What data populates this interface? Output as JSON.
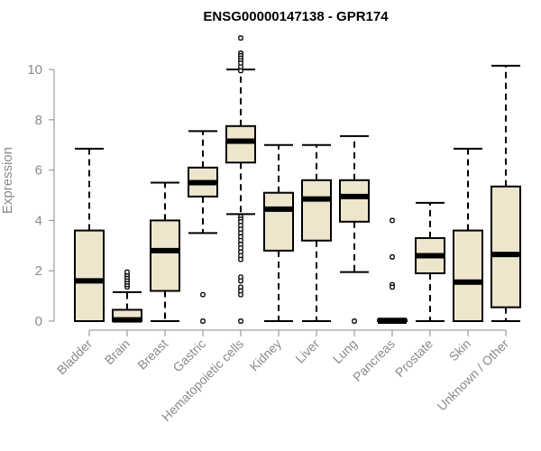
{
  "chart_data": {
    "type": "boxplot",
    "title": "ENSG00000147138 - GPR174",
    "xlabel": "",
    "ylabel": "Expression",
    "ylim": [
      0,
      10.4
    ],
    "yticks": [
      "0",
      "2",
      "4",
      "6",
      "8",
      "10"
    ],
    "box_color": "#ede6cd",
    "categories": [
      "Bladder",
      "Brain",
      "Breast",
      "Gastric",
      "Hematopoietic cells",
      "Kidney",
      "Liver",
      "Lung",
      "Pancreas",
      "Prostate",
      "Skin",
      "Unknown / Other"
    ],
    "series": [
      {
        "name": "Bladder",
        "min": 0,
        "q1": 0,
        "median": 1.6,
        "q3": 3.6,
        "max": 6.85,
        "outliers": []
      },
      {
        "name": "Brain",
        "min": 0,
        "q1": 0,
        "median": 0.05,
        "q3": 0.45,
        "max": 1.15,
        "outliers": [
          1.35,
          1.45,
          1.55,
          1.65,
          1.75,
          1.85,
          1.95
        ]
      },
      {
        "name": "Breast",
        "min": 0,
        "q1": 1.2,
        "median": 2.8,
        "q3": 4.0,
        "max": 5.5,
        "outliers": []
      },
      {
        "name": "Gastric",
        "min": 3.5,
        "q1": 4.95,
        "median": 5.5,
        "q3": 6.1,
        "max": 7.55,
        "outliers": [
          1.05,
          0.0
        ]
      },
      {
        "name": "Hematopoietic cells",
        "min": 4.25,
        "q1": 6.3,
        "median": 7.15,
        "q3": 7.75,
        "max": 10.0,
        "outliers": [
          11.25,
          10.65,
          10.55,
          10.45,
          10.35,
          10.25,
          10.1,
          9.95,
          4.15,
          4.05,
          3.95,
          3.8,
          3.65,
          3.5,
          3.35,
          3.2,
          3.05,
          2.9,
          2.75,
          2.6,
          2.45,
          1.75,
          1.6,
          1.35,
          1.2,
          1.05,
          0.0
        ]
      },
      {
        "name": "Kidney",
        "min": 0,
        "q1": 2.8,
        "median": 4.45,
        "q3": 5.1,
        "max": 7.0,
        "outliers": []
      },
      {
        "name": "Liver",
        "min": 0,
        "q1": 3.2,
        "median": 4.85,
        "q3": 5.6,
        "max": 7.0,
        "outliers": []
      },
      {
        "name": "Lung",
        "min": 1.95,
        "q1": 3.95,
        "median": 4.95,
        "q3": 5.6,
        "max": 7.35,
        "outliers": [
          0.0
        ]
      },
      {
        "name": "Pancreas",
        "min": 0,
        "q1": 0,
        "median": 0.0,
        "q3": 0.05,
        "max": 0.1,
        "outliers": [
          4.0,
          2.55,
          1.45,
          1.35
        ]
      },
      {
        "name": "Prostate",
        "min": 0,
        "q1": 1.9,
        "median": 2.6,
        "q3": 3.3,
        "max": 4.7,
        "outliers": []
      },
      {
        "name": "Skin",
        "min": 0,
        "q1": 0,
        "median": 1.55,
        "q3": 3.6,
        "max": 6.85,
        "outliers": []
      },
      {
        "name": "Unknown / Other",
        "min": 0,
        "q1": 0.55,
        "median": 2.65,
        "q3": 5.35,
        "max": 10.15,
        "outliers": []
      }
    ]
  }
}
